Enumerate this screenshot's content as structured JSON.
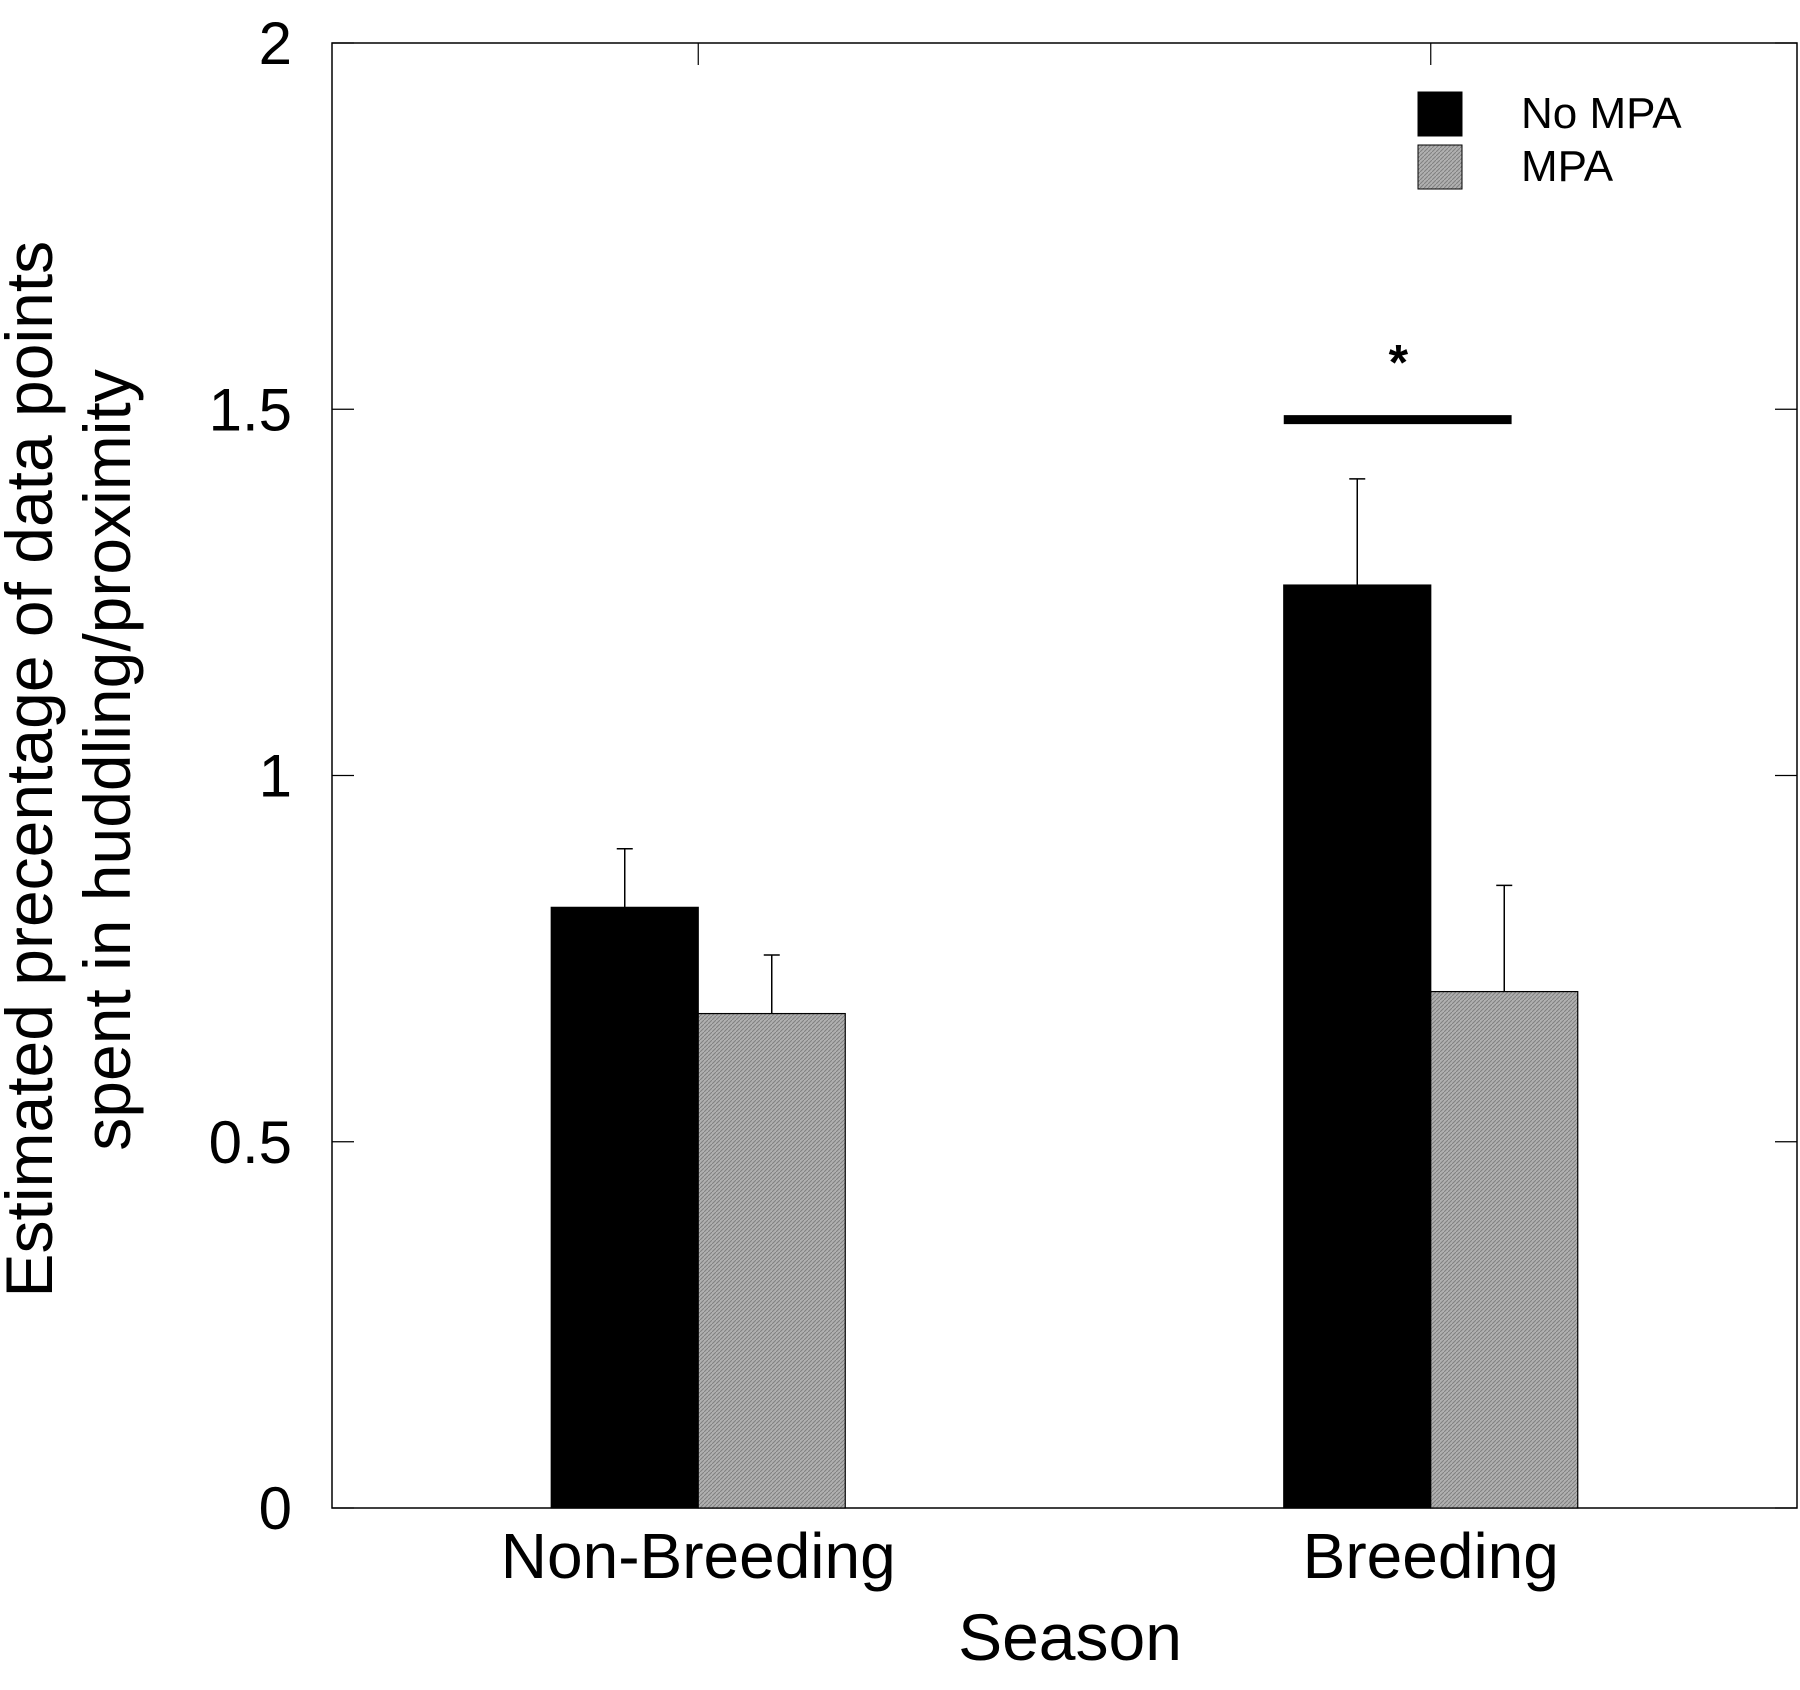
{
  "chart_data": {
    "type": "bar",
    "title": "",
    "xlabel": "Season",
    "ylabel_lines": [
      "Estimated precentage of data points",
      "spent in huddling/proximity"
    ],
    "categories": [
      "Non-Breeding",
      "Breeding"
    ],
    "series": [
      {
        "name": "No MPA",
        "color": "#000000",
        "values": [
          0.82,
          1.26
        ],
        "errors": [
          0.08,
          0.145
        ]
      },
      {
        "name": "MPA",
        "color": "#a6a6a6",
        "values": [
          0.675,
          0.705
        ],
        "errors": [
          0.08,
          0.145
        ]
      }
    ],
    "ylim": [
      0,
      2
    ],
    "yticks": [
      "0",
      "0.5",
      "1",
      "1.5",
      "2"
    ],
    "yticks_values": [
      0,
      0.5,
      1,
      1.5,
      2
    ],
    "legend_position": "top-right",
    "grid": false,
    "annotations": [
      {
        "text": "*",
        "category": "Breeding",
        "value": 1.49
      }
    ]
  }
}
